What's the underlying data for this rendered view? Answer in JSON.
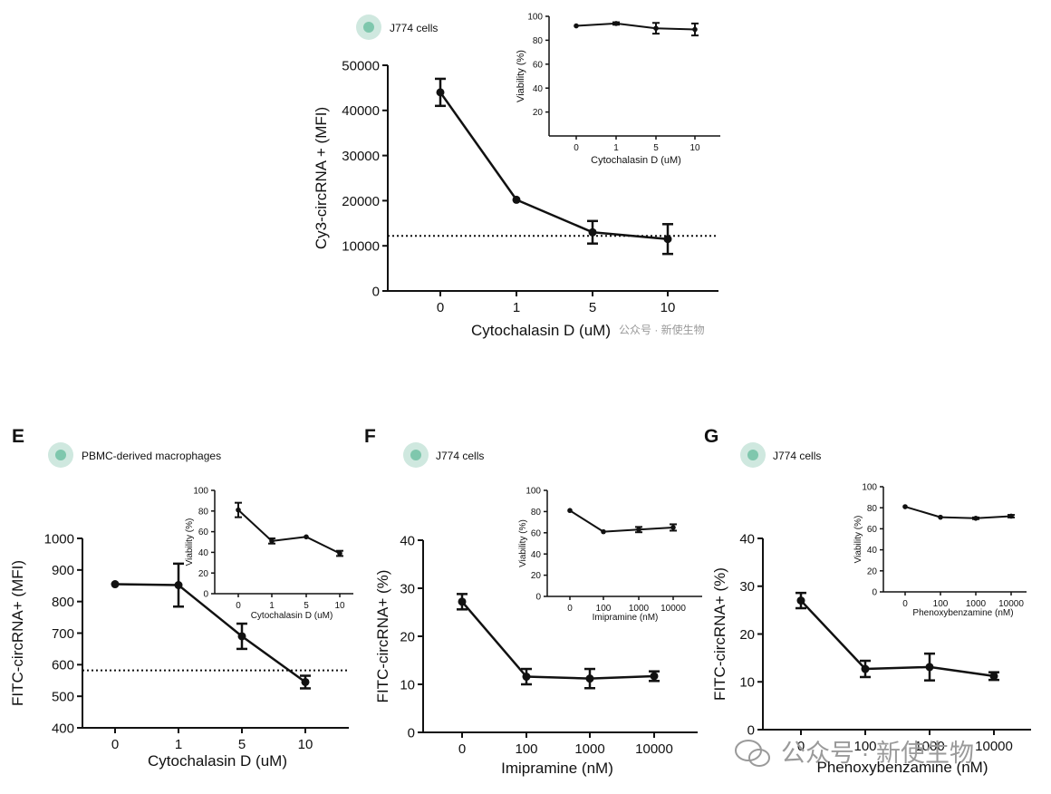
{
  "panels": [
    {
      "id": "top",
      "letter": "",
      "cell_label": "J774 cells",
      "main": {
        "type": "line",
        "categories": [
          "0",
          "1",
          "5",
          "10"
        ],
        "values": [
          44000,
          20200,
          13000,
          11500
        ],
        "errors": [
          3000,
          0,
          2500,
          3300
        ],
        "threshold": 12200,
        "ylim": [
          0,
          50000
        ],
        "yticks": [
          0,
          10000,
          20000,
          30000,
          40000,
          50000
        ],
        "ytick_labels": [
          "0",
          "10000",
          "20000",
          "30000",
          "40000",
          "50000"
        ],
        "xlabel": "Cytochalasin D (uM)",
        "ylabel": "Cy3-circRNA + (MFI)"
      },
      "inset": {
        "type": "line",
        "categories": [
          "0",
          "1",
          "5",
          "10"
        ],
        "values": [
          92,
          94,
          90,
          89
        ],
        "errors": [
          0,
          1,
          4.5,
          5
        ],
        "ylim": [
          0,
          100
        ],
        "yticks": [
          20,
          40,
          60,
          80,
          100
        ],
        "ytick_labels": [
          "20",
          "40",
          "60",
          "80",
          "100"
        ],
        "xlabel": "Cytochalasin D (uM)",
        "ylabel": "Viability (%)"
      }
    },
    {
      "id": "E",
      "letter": "E",
      "cell_label": "PBMC-derived macrophages",
      "main": {
        "type": "line",
        "categories": [
          "0",
          "1",
          "5",
          "10"
        ],
        "values": [
          855,
          852,
          690,
          545
        ],
        "errors": [
          0,
          68,
          40,
          20
        ],
        "threshold": 582,
        "ylim": [
          400,
          1000
        ],
        "yticks": [
          400,
          500,
          600,
          700,
          800,
          900,
          1000
        ],
        "ytick_labels": [
          "400",
          "500",
          "600",
          "700",
          "800",
          "900",
          "1000"
        ],
        "xlabel": "Cytochalasin D (uM)",
        "ylabel": "FITC-circRNA+ (MFI)"
      },
      "inset": {
        "type": "line",
        "categories": [
          "0",
          "1",
          "5",
          "10"
        ],
        "values": [
          81,
          51,
          55,
          39
        ],
        "errors": [
          7,
          2.5,
          0,
          2.5
        ],
        "ylim": [
          0,
          100
        ],
        "yticks": [
          0,
          20,
          40,
          60,
          80,
          100
        ],
        "ytick_labels": [
          "0",
          "20",
          "40",
          "60",
          "80",
          "100"
        ],
        "xlabel": "Cytochalasin D (uM)",
        "ylabel": "Viability (%)"
      }
    },
    {
      "id": "F",
      "letter": "F",
      "cell_label": "J774 cells",
      "main": {
        "type": "line",
        "categories": [
          "0",
          "100",
          "1000",
          "10000"
        ],
        "values": [
          27.2,
          11.6,
          11.2,
          11.7
        ],
        "errors": [
          1.6,
          1.6,
          2,
          1
        ],
        "ylim": [
          0,
          40
        ],
        "yticks": [
          0,
          10,
          20,
          30,
          40
        ],
        "ytick_labels": [
          "0",
          "10",
          "20",
          "30",
          "40"
        ],
        "xlabel": "Imipramine (nM)",
        "ylabel": "FITC-circRNA+ (%)"
      },
      "inset": {
        "type": "line",
        "categories": [
          "0",
          "100",
          "1000",
          "10000"
        ],
        "values": [
          81,
          61,
          63,
          65
        ],
        "errors": [
          0,
          0,
          2.5,
          3
        ],
        "ylim": [
          0,
          100
        ],
        "yticks": [
          0,
          20,
          40,
          60,
          80,
          100
        ],
        "ytick_labels": [
          "0",
          "20",
          "40",
          "60",
          "80",
          "100"
        ],
        "xlabel": "Imipramine (nM)",
        "ylabel": "Viability (%)"
      }
    },
    {
      "id": "G",
      "letter": "G",
      "cell_label": "J774 cells",
      "main": {
        "type": "line",
        "categories": [
          "0",
          "100",
          "1000",
          "10000"
        ],
        "values": [
          27.0,
          12.7,
          13.1,
          11.2
        ],
        "errors": [
          1.6,
          1.7,
          2.8,
          0.8
        ],
        "ylim": [
          0,
          40
        ],
        "yticks": [
          0,
          10,
          20,
          30,
          40
        ],
        "ytick_labels": [
          "0",
          "10",
          "20",
          "30",
          "40"
        ],
        "xlabel": "Phenoxybenzamine (nM)",
        "ylabel": "FITC-circRNA+ (%)"
      },
      "inset": {
        "type": "line",
        "categories": [
          "0",
          "100",
          "1000",
          "10000"
        ],
        "values": [
          81,
          71,
          70,
          72
        ],
        "errors": [
          0,
          0,
          0.8,
          1.2
        ],
        "ylim": [
          0,
          100
        ],
        "yticks": [
          0,
          20,
          40,
          60,
          80,
          100
        ],
        "ytick_labels": [
          "0",
          "20",
          "40",
          "60",
          "80",
          "100"
        ],
        "xlabel": "Phenoxybenzamine (nM)",
        "ylabel": "Viability (%)"
      }
    }
  ],
  "watermarks": {
    "small": "公众号 · 新使生物",
    "large": "公众号 · 新使生物"
  },
  "colors": {
    "line": "#111111",
    "cell_outer": "#cfe8df",
    "cell_inner": "#7fc7ad",
    "watermark": "#9a9a9a"
  }
}
